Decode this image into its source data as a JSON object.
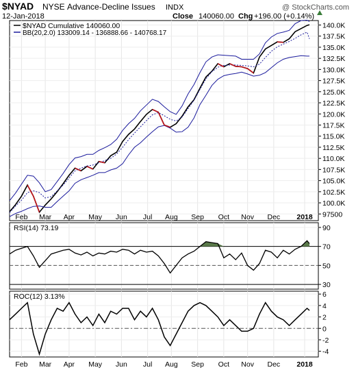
{
  "header": {
    "symbol": "$NYAD",
    "exchange": "NYSE",
    "name": "Advance-Decline Issues",
    "type": "INDX",
    "date": "12-Jan-2018",
    "close_label": "Close",
    "close_value": "140060.00",
    "chg_label": "Chg",
    "chg_value": "+196.00 (+0.14%)",
    "watermark": "@ StockCharts.com"
  },
  "chart_data": [
    {
      "type": "line",
      "panel": "price",
      "legend": [
        {
          "label": "$NYAD Cumulative 140060.00",
          "color": "#000000"
        },
        {
          "label": "BB(20,2.0) 133009.14 - 136888.66 - 140768.17",
          "color": "#1a1a9c"
        }
      ],
      "ylim": [
        96000,
        141000
      ],
      "y_ticks": [
        "140.0K",
        "137.5K",
        "135.0K",
        "132.5K",
        "130.0K",
        "127.5K",
        "125.0K",
        "122.5K",
        "120.0K",
        "117.5K",
        "115.0K",
        "112.5K",
        "110.0K",
        "107.5K",
        "105.0K",
        "102.5K",
        "100.0K",
        "97500"
      ],
      "x_ticks": [
        "Feb",
        "Mar",
        "Apr",
        "May",
        "Jun",
        "Jul",
        "Aug",
        "Sep",
        "Oct",
        "Nov",
        "Dec",
        "2018"
      ],
      "series": [
        {
          "name": "$NYAD Cumulative",
          "color": "#000000",
          "x": [
            0,
            5,
            10,
            15,
            20,
            25,
            30,
            35,
            40,
            45,
            50,
            55,
            60,
            65,
            70,
            75,
            80,
            85,
            90,
            95,
            100,
            105,
            110,
            115,
            120,
            125,
            130,
            135,
            140,
            145,
            150,
            155,
            160,
            165,
            170,
            175,
            180,
            185,
            190,
            195,
            200,
            205,
            210,
            215,
            220,
            225,
            230,
            235,
            240,
            245,
            250,
            252
          ],
          "values": [
            98000,
            99600,
            101500,
            104000,
            101500,
            97900,
            99500,
            100900,
            102500,
            104300,
            106200,
            107800,
            107200,
            108200,
            107600,
            109300,
            109000,
            110600,
            111400,
            113800,
            115400,
            116600,
            118300,
            119900,
            121000,
            120400,
            117500,
            117000,
            117800,
            119500,
            121600,
            123200,
            125800,
            128300,
            129600,
            131300,
            130600,
            131300,
            130700,
            130600,
            130200,
            129200,
            132800,
            134600,
            135400,
            136200,
            136100,
            136900,
            138500,
            139200,
            139900,
            140060
          ]
        },
        {
          "name": "BB upper",
          "color": "#1a1a9c",
          "x": [
            0,
            5,
            10,
            15,
            20,
            25,
            30,
            35,
            40,
            45,
            50,
            55,
            60,
            65,
            70,
            75,
            80,
            85,
            90,
            95,
            100,
            105,
            110,
            115,
            120,
            125,
            130,
            135,
            140,
            145,
            150,
            155,
            160,
            165,
            170,
            175,
            180,
            185,
            190,
            195,
            200,
            205,
            210,
            215,
            220,
            225,
            230,
            235,
            240,
            245,
            250,
            252
          ],
          "values": [
            100500,
            102200,
            104200,
            106200,
            106000,
            104500,
            102500,
            103000,
            104800,
            106600,
            108600,
            110100,
            110400,
            110900,
            110900,
            111800,
            112400,
            113100,
            114300,
            116300,
            117800,
            119000,
            120700,
            122000,
            123300,
            122800,
            121600,
            120500,
            119900,
            121800,
            124500,
            126600,
            129300,
            131700,
            132800,
            133300,
            133200,
            133100,
            133000,
            132300,
            132300,
            132300,
            133500,
            136000,
            137300,
            138100,
            138400,
            138800,
            140300,
            141000,
            141100,
            140768
          ]
        },
        {
          "name": "BB middle",
          "color": "#1a1a9c",
          "x": [
            0,
            5,
            10,
            15,
            20,
            25,
            30,
            35,
            40,
            45,
            50,
            55,
            60,
            65,
            70,
            75,
            80,
            85,
            90,
            95,
            100,
            105,
            110,
            115,
            120,
            125,
            130,
            135,
            140,
            145,
            150,
            155,
            160,
            165,
            170,
            175,
            180,
            185,
            190,
            195,
            200,
            205,
            210,
            215,
            220,
            225,
            230,
            235,
            240,
            245,
            250,
            252
          ],
          "values": [
            97800,
            99300,
            100600,
            102300,
            102700,
            102300,
            101100,
            101400,
            102700,
            104000,
            105600,
            107200,
            107800,
            108300,
            108500,
            109000,
            109500,
            110000,
            111000,
            112500,
            114200,
            115700,
            117100,
            118500,
            119800,
            120300,
            119600,
            118800,
            118400,
            119300,
            121200,
            123100,
            125500,
            127900,
            129500,
            130500,
            130900,
            131000,
            131000,
            130900,
            130800,
            130600,
            131200,
            132700,
            134100,
            135100,
            135700,
            136300,
            137000,
            137800,
            138400,
            136889
          ]
        },
        {
          "name": "BB lower",
          "color": "#1a1a9c",
          "x": [
            0,
            5,
            10,
            15,
            20,
            25,
            30,
            35,
            40,
            45,
            50,
            55,
            60,
            65,
            70,
            75,
            80,
            85,
            90,
            95,
            100,
            105,
            110,
            115,
            120,
            125,
            130,
            135,
            140,
            145,
            150,
            155,
            160,
            165,
            170,
            175,
            180,
            185,
            190,
            195,
            200,
            205,
            210,
            215,
            220,
            225,
            230,
            235,
            240,
            245,
            250,
            252
          ],
          "values": [
            96900,
            97600,
            98100,
            98700,
            99200,
            99300,
            99000,
            99000,
            100300,
            101500,
            102700,
            104400,
            105200,
            105700,
            106200,
            106800,
            106800,
            107400,
            107800,
            108800,
            110800,
            112500,
            113500,
            114800,
            116000,
            117100,
            117400,
            116800,
            115900,
            116000,
            117000,
            119100,
            122100,
            124200,
            126400,
            127800,
            128600,
            128900,
            129100,
            129400,
            129000,
            128500,
            128700,
            129300,
            130400,
            131500,
            132300,
            132700,
            132900,
            133100,
            133000,
            133009
          ]
        }
      ]
    },
    {
      "type": "line",
      "panel": "RSI",
      "legend": [
        {
          "label": "RSI(14) 73.19",
          "color": "#000000"
        }
      ],
      "ylim": [
        25,
        95
      ],
      "y_ticks": [
        90,
        70,
        50,
        30
      ],
      "reference_lines": [
        70,
        50,
        30
      ],
      "overbought_fill": "#5a7a4a",
      "series": [
        {
          "name": "RSI(14)",
          "color": "#000000",
          "x": [
            0,
            5,
            10,
            15,
            20,
            25,
            30,
            35,
            40,
            45,
            50,
            55,
            60,
            65,
            70,
            75,
            80,
            85,
            90,
            95,
            100,
            105,
            110,
            115,
            120,
            125,
            130,
            135,
            140,
            145,
            150,
            155,
            160,
            165,
            170,
            175,
            180,
            185,
            190,
            195,
            200,
            205,
            210,
            215,
            220,
            225,
            230,
            235,
            240,
            245,
            250,
            252
          ],
          "values": [
            62,
            66,
            68,
            70,
            60,
            48,
            55,
            62,
            64,
            66,
            67,
            63,
            61,
            64,
            60,
            63,
            62,
            65,
            64,
            67,
            66,
            62,
            66,
            64,
            65,
            60,
            52,
            42,
            50,
            58,
            62,
            65,
            70,
            75,
            74,
            73,
            58,
            62,
            56,
            63,
            50,
            45,
            52,
            66,
            64,
            58,
            66,
            62,
            67,
            70,
            76,
            73
          ]
        }
      ]
    },
    {
      "type": "line",
      "panel": "ROC",
      "legend": [
        {
          "label": "ROC(12) 3.13%",
          "color": "#000000"
        }
      ],
      "ylim": [
        -5,
        6.5
      ],
      "y_ticks": [
        6,
        4,
        2,
        0,
        -2,
        -4
      ],
      "reference_lines": [
        0
      ],
      "series": [
        {
          "name": "ROC(12)",
          "color": "#000000",
          "x": [
            0,
            5,
            10,
            15,
            20,
            25,
            30,
            35,
            40,
            45,
            50,
            55,
            60,
            65,
            70,
            75,
            80,
            85,
            90,
            95,
            100,
            105,
            110,
            115,
            120,
            125,
            130,
            135,
            140,
            145,
            150,
            155,
            160,
            165,
            170,
            175,
            180,
            185,
            190,
            195,
            200,
            205,
            210,
            215,
            220,
            225,
            230,
            235,
            240,
            245,
            250,
            252
          ],
          "values": [
            1.5,
            2.5,
            3.5,
            4.5,
            -1,
            -4.5,
            -1,
            1.5,
            3.5,
            3,
            4.5,
            2.5,
            1,
            2,
            0.5,
            2.5,
            1,
            3,
            2.5,
            3.5,
            3.5,
            1.5,
            3,
            2,
            3.5,
            1.5,
            -1.5,
            -3,
            -1,
            1,
            3,
            4,
            4.5,
            4,
            3,
            2,
            0.5,
            1.5,
            0.5,
            -0.5,
            -0.5,
            0,
            2.5,
            4.5,
            3,
            2,
            1.5,
            0.5,
            1.5,
            2.5,
            3.5,
            3.13
          ]
        }
      ]
    }
  ]
}
